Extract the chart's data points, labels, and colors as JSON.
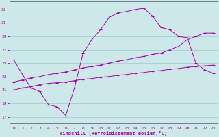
{
  "background_color": "#cce8e8",
  "line_color": "#aa00aa",
  "grid_color": "#99cccc",
  "xlabel": "Windchill (Refroidissement éolien,°C)",
  "x_ticks": [
    0,
    1,
    2,
    3,
    4,
    5,
    6,
    7,
    8,
    9,
    10,
    11,
    12,
    13,
    14,
    15,
    16,
    17,
    18,
    19,
    20,
    21,
    22,
    23
  ],
  "y_ticks": [
    17,
    19,
    21,
    23,
    25,
    27,
    29,
    31,
    33
  ],
  "ylim": [
    16.0,
    34.2
  ],
  "xlim": [
    -0.5,
    23.5
  ],
  "series1_x": [
    0,
    1,
    2,
    3,
    4,
    5,
    6,
    7,
    8,
    9,
    10,
    11,
    12,
    13,
    14,
    15,
    16,
    17,
    18,
    19,
    20,
    21,
    22,
    23
  ],
  "series1_y": [
    25.5,
    23.3,
    21.3,
    20.8,
    18.8,
    18.5,
    17.2,
    21.3,
    26.5,
    28.5,
    30.0,
    31.8,
    32.5,
    32.7,
    33.0,
    33.2,
    32.0,
    30.3,
    30.0,
    29.0,
    28.8,
    25.0,
    24.0,
    23.5
  ],
  "series2_x": [
    0,
    1,
    2,
    3,
    4,
    5,
    6,
    7,
    8,
    9,
    10,
    11,
    12,
    13,
    14,
    15,
    16,
    17,
    18,
    19,
    20,
    21,
    22,
    23
  ],
  "series2_y": [
    22.2,
    22.5,
    22.8,
    23.0,
    23.3,
    23.5,
    23.7,
    24.0,
    24.3,
    24.5,
    24.7,
    25.0,
    25.3,
    25.5,
    25.8,
    26.0,
    26.3,
    26.5,
    27.0,
    27.5,
    28.5,
    29.0,
    29.5,
    29.5
  ],
  "series3_x": [
    0,
    1,
    2,
    3,
    4,
    5,
    6,
    7,
    8,
    9,
    10,
    11,
    12,
    13,
    14,
    15,
    16,
    17,
    18,
    19,
    20,
    21,
    22,
    23
  ],
  "series3_y": [
    21.0,
    21.3,
    21.5,
    21.8,
    22.0,
    22.1,
    22.2,
    22.4,
    22.6,
    22.7,
    22.9,
    23.0,
    23.2,
    23.3,
    23.5,
    23.6,
    23.8,
    23.9,
    24.1,
    24.2,
    24.4,
    24.5,
    24.6,
    24.7
  ]
}
